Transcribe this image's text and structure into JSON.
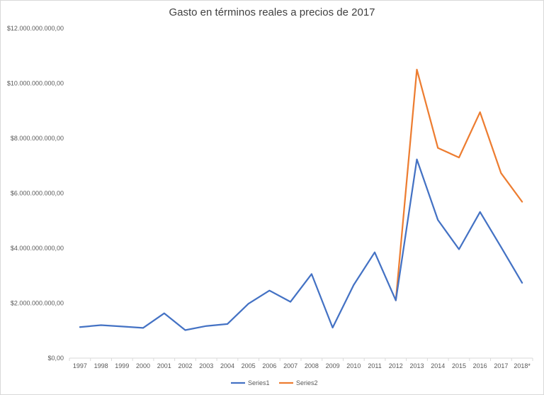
{
  "chart_data": {
    "type": "line",
    "title": "Gasto en términos reales a precios de 2017",
    "xlabel": "",
    "ylabel": "",
    "categories": [
      "1997",
      "1998",
      "1999",
      "2000",
      "2001",
      "2002",
      "2003",
      "2004",
      "2005",
      "2006",
      "2007",
      "2008",
      "2009",
      "2010",
      "2011",
      "2012",
      "2013",
      "2014",
      "2015",
      "2016",
      "2017",
      "2018*"
    ],
    "ylim": [
      0,
      12000000000
    ],
    "yticks": [
      0,
      2000000000,
      4000000000,
      6000000000,
      8000000000,
      10000000000,
      12000000000
    ],
    "ytick_labels": [
      "$0,00",
      "$2.000.000.000,00",
      "$4.000.000.000,00",
      "$6.000.000.000,00",
      "$8.000.000.000,00",
      "$10.000.000.000,00",
      "$12.000.000.000,00"
    ],
    "grid": false,
    "legend_position": "bottom",
    "series": [
      {
        "name": "Series1",
        "color": "#4472c4",
        "values": [
          1130000000,
          1200000000,
          1150000000,
          1100000000,
          1630000000,
          1020000000,
          1170000000,
          1240000000,
          1980000000,
          2460000000,
          2050000000,
          3060000000,
          1110000000,
          2660000000,
          3850000000,
          2100000000,
          7230000000,
          5030000000,
          3960000000,
          5320000000,
          4040000000,
          2740000000
        ]
      },
      {
        "name": "Series2",
        "color": "#ed7d31",
        "values": [
          null,
          null,
          null,
          null,
          null,
          null,
          null,
          null,
          null,
          null,
          null,
          null,
          null,
          null,
          null,
          2100000000,
          10500000000,
          7650000000,
          7300000000,
          8950000000,
          6730000000,
          5690000000
        ]
      }
    ]
  }
}
